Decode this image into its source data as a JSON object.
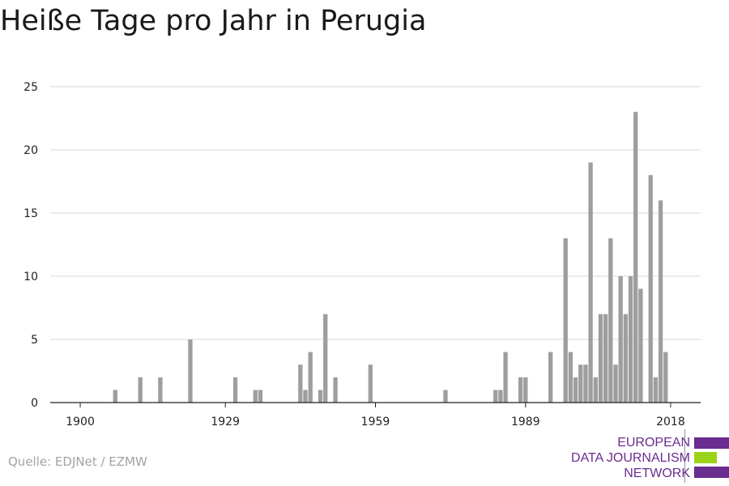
{
  "chart_data": {
    "type": "bar",
    "title": "Heiße Tage pro Jahr in Perugia",
    "xlabel": "",
    "ylabel": "",
    "x_ticks": [
      1900,
      1929,
      1959,
      1989,
      2018
    ],
    "y_ticks": [
      0,
      5,
      10,
      15,
      20,
      25
    ],
    "xlim": [
      1894,
      2024
    ],
    "ylim": [
      0,
      25
    ],
    "grid": "horizontal",
    "bar_color": "#9e9e9e",
    "x": [
      1907,
      1912,
      1916,
      1922,
      1931,
      1935,
      1936,
      1944,
      1945,
      1946,
      1948,
      1949,
      1951,
      1958,
      1973,
      1983,
      1984,
      1985,
      1988,
      1989,
      1994,
      1997,
      1998,
      1999,
      2000,
      2001,
      2002,
      2003,
      2004,
      2005,
      2006,
      2007,
      2008,
      2009,
      2010,
      2011,
      2012,
      2013,
      2014,
      2015,
      2016,
      2017,
      2018
    ],
    "values": [
      1,
      2,
      2,
      5,
      2,
      1,
      1,
      3,
      1,
      4,
      1,
      7,
      2,
      3,
      1,
      1,
      1,
      4,
      2,
      2,
      4,
      13,
      4,
      2,
      3,
      3,
      19,
      2,
      7,
      7,
      13,
      3,
      10,
      7,
      10,
      23,
      9,
      0,
      18,
      2,
      16,
      4,
      0
    ]
  },
  "source": "Quelle: EDJNet / EZMW",
  "logo": {
    "line1": "EUROPEAN",
    "line2": "DATA JOURNALISM",
    "line3": "NETWORK",
    "colors": {
      "purple": "#6a2c8f",
      "green": "#9bd21a"
    }
  }
}
